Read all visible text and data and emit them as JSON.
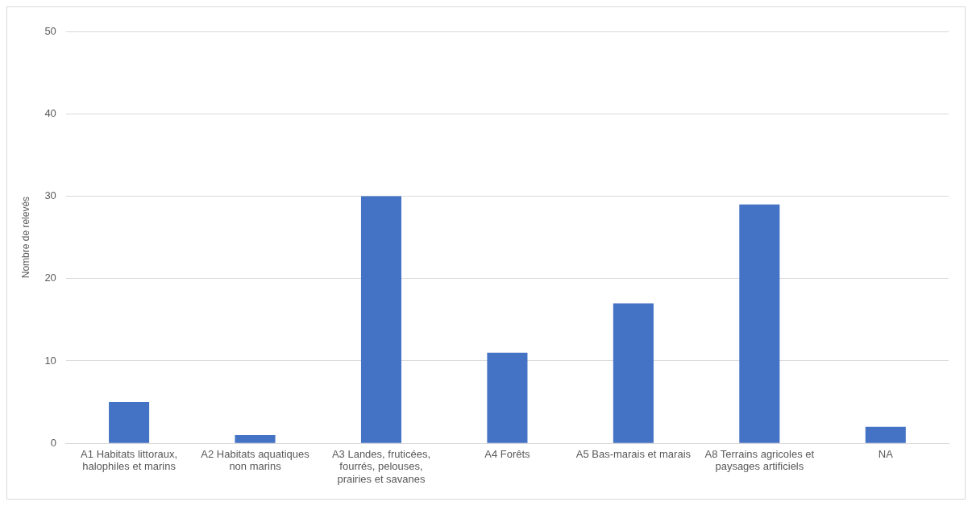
{
  "chart_data": {
    "type": "bar",
    "ylabel": "Nombre de relevés",
    "categories": [
      "A1 Habitats littoraux, halophiles et marins",
      "A2 Habitats aquatiques non marins",
      "A3 Landes, fruticées, fourrés, pelouses, prairies et savanes",
      "A4 Forêts",
      "A5 Bas-marais et marais",
      "A8 Terrains agricoles et paysages artificiels",
      "NA"
    ],
    "values": [
      5,
      1,
      30,
      11,
      17,
      29,
      2
    ],
    "color": "#4472c4",
    "ylim": [
      0,
      50
    ],
    "yticks": [
      0,
      10,
      20,
      30,
      40,
      50
    ],
    "grid": "y",
    "legend": false
  }
}
